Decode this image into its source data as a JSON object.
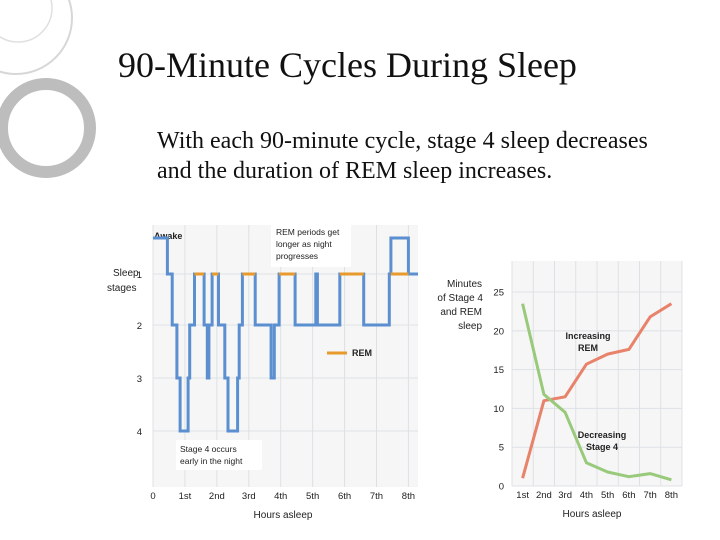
{
  "slide": {
    "title": "90-Minute Cycles During Sleep",
    "body": "With each 90-minute cycle, stage 4 sleep decreases and the duration of REM sleep increases."
  },
  "colors": {
    "stage_line": "#5b8fd0",
    "rem": "#e89a2c",
    "increasing": "#e8826a",
    "decreasing": "#99c97a",
    "grid": "#dde1e6",
    "chart_bg": "#f6f6f6"
  },
  "chart_data": [
    {
      "type": "line",
      "ylabel": "Sleep stages",
      "xlabel": "Hours asleep",
      "x_ticks": [
        "0",
        "1st",
        "2nd",
        "3rd",
        "4th",
        "5th",
        "6th",
        "7th",
        "8th"
      ],
      "y_ticks": [
        "Awake",
        "1",
        "2",
        "3",
        "4"
      ],
      "x_range": [
        0,
        8.3
      ],
      "y_range": [
        0,
        4
      ],
      "grid": true,
      "legend": {
        "position": "center-right",
        "entries": [
          "REM"
        ]
      },
      "annotations": [
        "REM periods get longer as night progresses",
        "Stage 4 occurs early in the night"
      ],
      "series": [
        {
          "name": "REM",
          "segments": [
            [
              1.3,
              1.6
            ],
            [
              1.85,
              2.05
            ],
            [
              2.8,
              3.2
            ],
            [
              3.95,
              4.45
            ],
            [
              5.85,
              6.6
            ],
            [
              7.45,
              8.0
            ]
          ]
        },
        {
          "points": [
            [
              0,
              0
            ],
            [
              0.45,
              0
            ],
            [
              0.45,
              1
            ],
            [
              0.6,
              1
            ],
            [
              0.6,
              2
            ],
            [
              0.75,
              2
            ],
            [
              0.75,
              3
            ],
            [
              0.85,
              3
            ],
            [
              0.85,
              4
            ],
            [
              1.1,
              4
            ],
            [
              1.1,
              3
            ],
            [
              1.15,
              3
            ],
            [
              1.15,
              2
            ],
            [
              1.3,
              2
            ],
            [
              1.3,
              1
            ],
            [
              1.6,
              1
            ],
            [
              1.6,
              2
            ],
            [
              1.7,
              2
            ],
            [
              1.7,
              3
            ],
            [
              1.75,
              3
            ],
            [
              1.75,
              2
            ],
            [
              1.85,
              2
            ],
            [
              1.85,
              1
            ],
            [
              2.05,
              1
            ],
            [
              2.05,
              2
            ],
            [
              2.25,
              2
            ],
            [
              2.25,
              3
            ],
            [
              2.35,
              3
            ],
            [
              2.35,
              4
            ],
            [
              2.65,
              4
            ],
            [
              2.65,
              3
            ],
            [
              2.7,
              3
            ],
            [
              2.7,
              2
            ],
            [
              2.8,
              2
            ],
            [
              2.8,
              1
            ],
            [
              3.2,
              1
            ],
            [
              3.2,
              2
            ],
            [
              3.7,
              2
            ],
            [
              3.7,
              3
            ],
            [
              3.8,
              3
            ],
            [
              3.8,
              2
            ],
            [
              3.95,
              2
            ],
            [
              3.95,
              1
            ],
            [
              4.45,
              1
            ],
            [
              4.45,
              2
            ],
            [
              5.1,
              2
            ],
            [
              5.1,
              1
            ],
            [
              5.15,
              1
            ],
            [
              5.15,
              2
            ],
            [
              5.85,
              2
            ],
            [
              5.85,
              1
            ],
            [
              6.6,
              1
            ],
            [
              6.6,
              2
            ],
            [
              7.4,
              2
            ],
            [
              7.4,
              1
            ],
            [
              7.45,
              1
            ],
            [
              7.45,
              0
            ],
            [
              8.0,
              0
            ],
            [
              8.0,
              1
            ],
            [
              8.3,
              1
            ]
          ]
        }
      ]
    },
    {
      "type": "line",
      "ylabel": "Minutes of Stage 4 and REM sleep",
      "xlabel": "Hours asleep",
      "categories": [
        "1st",
        "2nd",
        "3rd",
        "4th",
        "5th",
        "6th",
        "7th",
        "8th"
      ],
      "y_ticks": [
        0,
        5,
        10,
        15,
        20,
        25
      ],
      "ylim": [
        0,
        29
      ],
      "grid": true,
      "series": [
        {
          "name": "Increasing REM",
          "x": [
            0.5,
            1.5,
            2.5,
            3.5,
            4.5,
            5.5,
            6.5,
            7.5
          ],
          "values": [
            1,
            11,
            11.5,
            15.7,
            17,
            17.6,
            21.8,
            23.5
          ]
        },
        {
          "name": "Decreasing Stage 4",
          "x": [
            0.5,
            1.5,
            2.5,
            3.5,
            4.5,
            5.5,
            6.5,
            7.5
          ],
          "values": [
            23.5,
            11.8,
            9.5,
            3,
            1.8,
            1.2,
            1.6,
            0.8
          ]
        }
      ]
    }
  ]
}
